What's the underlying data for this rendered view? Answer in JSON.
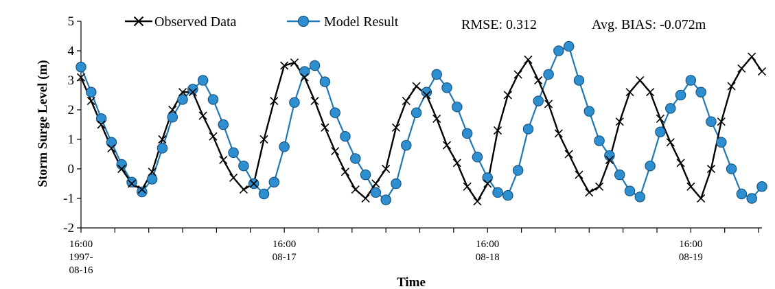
{
  "chart_data": {
    "type": "line",
    "title": "",
    "xlabel": "Time",
    "ylabel": "Storm Surge Level (m)",
    "ylim": [
      -2,
      5
    ],
    "yticks": [
      -2,
      -1,
      0,
      1,
      2,
      3,
      4,
      5
    ],
    "xlim": [
      0,
      80.4
    ],
    "x_unit": "hours from 1997-08-16 16:00",
    "x_tick_labels": [
      {
        "x": 0,
        "lines": [
          "16:00",
          "1997-",
          "08-16"
        ]
      },
      {
        "x": 24,
        "lines": [
          "16:00",
          "08-17"
        ]
      },
      {
        "x": 48,
        "lines": [
          "16:00",
          "08-18"
        ]
      },
      {
        "x": 72,
        "lines": [
          "16:00",
          "08-19"
        ]
      }
    ],
    "grid": false,
    "legend": "top-left",
    "annotations": [
      {
        "text": "RMSE: 0.312"
      },
      {
        "text": "Avg. BIAS: -0.072m"
      }
    ],
    "series": [
      {
        "name": "Observed Data",
        "color": "#000000",
        "marker": "x",
        "x": [
          0,
          1.2,
          2.4,
          3.6,
          4.8,
          6.0,
          7.2,
          8.4,
          9.6,
          10.8,
          12.0,
          13.2,
          14.4,
          15.6,
          16.8,
          18.0,
          19.2,
          20.4,
          21.6,
          22.8,
          24.0,
          25.2,
          26.4,
          27.6,
          28.8,
          30.0,
          31.2,
          32.4,
          33.6,
          34.8,
          36.0,
          37.2,
          38.4,
          39.6,
          40.8,
          42.0,
          43.2,
          44.4,
          45.6,
          46.8,
          48.0,
          49.2,
          50.4,
          51.6,
          52.8,
          54.0,
          55.2,
          56.4,
          57.6,
          58.8,
          60.0,
          61.2,
          62.4,
          63.6,
          64.8,
          66.0,
          67.2,
          68.4,
          69.6,
          70.8,
          72.0,
          73.2,
          74.4,
          75.6,
          76.8,
          78.0,
          79.2,
          80.4
        ],
        "y": [
          3.1,
          2.3,
          1.5,
          0.7,
          0.0,
          -0.5,
          -0.7,
          -0.1,
          1.0,
          2.0,
          2.6,
          2.6,
          1.8,
          1.1,
          0.3,
          -0.3,
          -0.7,
          -0.5,
          1.0,
          2.3,
          3.5,
          3.6,
          3.1,
          2.3,
          1.4,
          0.6,
          -0.1,
          -0.7,
          -1.0,
          -0.5,
          0.0,
          1.4,
          2.3,
          2.8,
          2.5,
          1.7,
          0.8,
          0.2,
          -0.6,
          -1.1,
          -0.5,
          1.3,
          2.5,
          3.2,
          3.7,
          3.0,
          2.2,
          1.2,
          0.5,
          -0.2,
          -0.8,
          -0.6,
          0.3,
          1.6,
          2.6,
          3.0,
          2.6,
          1.7,
          0.9,
          0.2,
          -0.6,
          -1.0,
          0.0,
          1.6,
          2.8,
          3.4,
          3.8,
          3.3
        ]
      },
      {
        "name": "Model Result",
        "color": "#1f77b4",
        "marker": "circle",
        "x": [
          0,
          1.2,
          2.4,
          3.6,
          4.8,
          6.0,
          7.2,
          8.4,
          9.6,
          10.8,
          12.0,
          13.2,
          14.4,
          15.6,
          16.8,
          18.0,
          19.2,
          20.4,
          21.6,
          22.8,
          24.0,
          25.2,
          26.4,
          27.6,
          28.8,
          30.0,
          31.2,
          32.4,
          33.6,
          34.8,
          36.0,
          37.2,
          38.4,
          39.6,
          40.8,
          42.0,
          43.2,
          44.4,
          45.6,
          46.8,
          48.0,
          49.2,
          50.4,
          51.6,
          52.8,
          54.0,
          55.2,
          56.4,
          57.6,
          58.8,
          60.0,
          61.2,
          62.4,
          63.6,
          64.8,
          66.0,
          67.2,
          68.4,
          69.6,
          70.8,
          72.0,
          73.2,
          74.4,
          75.6,
          76.8,
          78.0,
          79.2,
          80.4
        ],
        "y": [
          3.45,
          2.6,
          1.7,
          0.9,
          0.15,
          -0.45,
          -0.78,
          -0.35,
          0.7,
          1.75,
          2.35,
          2.7,
          3.0,
          2.35,
          1.5,
          0.55,
          0.1,
          -0.5,
          -0.85,
          -0.45,
          0.75,
          2.25,
          3.3,
          3.5,
          2.95,
          1.9,
          1.1,
          0.35,
          -0.2,
          -0.8,
          -1.05,
          -0.5,
          0.8,
          1.9,
          2.6,
          3.2,
          2.75,
          2.1,
          1.2,
          0.4,
          -0.3,
          -0.8,
          -0.9,
          -0.05,
          1.35,
          2.3,
          3.2,
          4.0,
          4.15,
          3.0,
          1.95,
          0.95,
          0.45,
          -0.2,
          -0.75,
          -0.95,
          0.1,
          1.25,
          2.05,
          2.5,
          3.0,
          2.6,
          1.6,
          0.9,
          0.0,
          -0.85,
          -1.0,
          -0.6
        ]
      }
    ]
  }
}
